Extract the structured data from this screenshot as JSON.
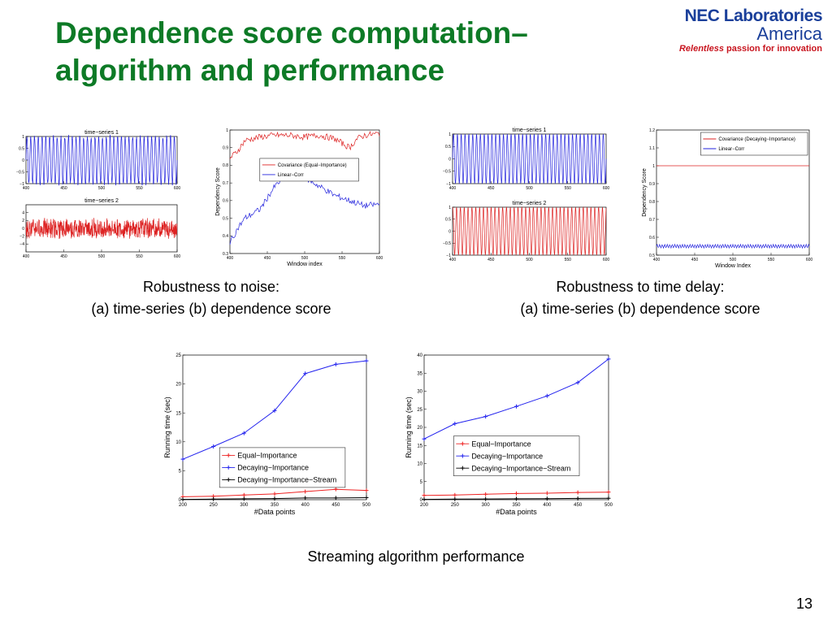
{
  "slide": {
    "title_line1": "Dependence score computation–",
    "title_line2": "algorithm and performance",
    "page_number": "13"
  },
  "logo": {
    "line1": "NEC Laboratories",
    "line2": "America",
    "tagline_italic": "Relentless",
    "tagline_rest": " passion for innovation",
    "brand_color": "#1a3f9a",
    "accent_color": "#c8141e"
  },
  "captions": {
    "noise_line1": "Robustness to noise:",
    "noise_line2": "(a) time-series  (b) dependence score",
    "delay_line1": "Robustness to time delay:",
    "delay_line2": "(a) time-series  (b) dependence score",
    "streaming": "Streaming algorithm performance"
  },
  "chart_data": [
    {
      "id": "noise_ts1",
      "type": "line",
      "title": "time−series 1",
      "xlim": [
        400,
        600
      ],
      "ylim": [
        -1,
        1
      ],
      "xticks": [
        "400",
        "450",
        "500",
        "550",
        "600"
      ],
      "yticks": [
        "1",
        "0.5",
        "0",
        "−0.5",
        "−1"
      ],
      "series": [
        {
          "color": "#2222dd",
          "values": {
            "kind": "sine",
            "cycles": 40,
            "amplitude": 1,
            "noise": 0.08
          }
        }
      ]
    },
    {
      "id": "noise_ts2",
      "type": "line",
      "title": "time−series 2",
      "xlim": [
        400,
        600
      ],
      "ylim": [
        -6,
        6
      ],
      "xticks": [
        "400",
        "450",
        "500",
        "550",
        "600"
      ],
      "yticks": [
        "4",
        "2",
        "0",
        "−2",
        "−4"
      ],
      "series": [
        {
          "color": "#dd2222",
          "values": {
            "kind": "noise",
            "amplitude": 2.2
          }
        }
      ]
    },
    {
      "id": "noise_score",
      "type": "line",
      "title": "",
      "xlabel": "Window index",
      "ylabel": "Dependency Score",
      "xlim": [
        400,
        600
      ],
      "ylim": [
        0.3,
        1.0
      ],
      "xticks": [
        "400",
        "450",
        "500",
        "550",
        "600"
      ],
      "yticks": [
        "1",
        "0.9",
        "0.8",
        "0.7",
        "0.6",
        "0.5",
        "0.4",
        "0.3"
      ],
      "legend": "upper-center",
      "series": [
        {
          "name": "Covariance (Equal−Importance)",
          "color": "#dd2222",
          "x": [
            400,
            410,
            420,
            440,
            460,
            480,
            500,
            520,
            540,
            560,
            570,
            580,
            600
          ],
          "y": [
            0.84,
            0.88,
            0.94,
            0.96,
            0.97,
            0.97,
            0.96,
            0.97,
            0.95,
            0.9,
            0.95,
            0.97,
            0.98
          ]
        },
        {
          "name": "Linear−Corr",
          "color": "#2222dd",
          "x": [
            400,
            410,
            420,
            440,
            460,
            470,
            480,
            500,
            520,
            540,
            560,
            580,
            600
          ],
          "y": [
            0.36,
            0.44,
            0.5,
            0.55,
            0.68,
            0.72,
            0.74,
            0.73,
            0.68,
            0.63,
            0.6,
            0.57,
            0.58
          ]
        }
      ]
    },
    {
      "id": "delay_ts1",
      "type": "line",
      "title": "time−series 1",
      "xlim": [
        400,
        600
      ],
      "ylim": [
        -1,
        1
      ],
      "xticks": [
        "400",
        "450",
        "500",
        "550",
        "600"
      ],
      "yticks": [
        "1",
        "0.5",
        "0",
        "−0.5",
        "−1"
      ],
      "series": [
        {
          "color": "#2222dd",
          "values": {
            "kind": "sine",
            "cycles": 40,
            "amplitude": 1,
            "noise": 0
          }
        }
      ]
    },
    {
      "id": "delay_ts2",
      "type": "line",
      "title": "time−series 2",
      "xlim": [
        400,
        600
      ],
      "ylim": [
        -1,
        1
      ],
      "xticks": [
        "400",
        "450",
        "500",
        "550",
        "600"
      ],
      "yticks": [
        "1",
        "0.5",
        "0",
        "−0.5",
        "−1"
      ],
      "series": [
        {
          "color": "#dd2222",
          "values": {
            "kind": "sine",
            "cycles": 40,
            "amplitude": 1,
            "noise": 0,
            "phase": 1.3
          }
        }
      ]
    },
    {
      "id": "delay_score",
      "type": "line",
      "title": "",
      "xlabel": "Window Index",
      "ylabel": "Dependency Score",
      "xlim": [
        400,
        600
      ],
      "ylim": [
        0.5,
        1.2
      ],
      "xticks": [
        "400",
        "450",
        "500",
        "550",
        "600"
      ],
      "yticks": [
        "1.2",
        "1.1",
        "1",
        "0.9",
        "0.8",
        "0.7",
        "0.6",
        "0.5"
      ],
      "legend": "top-right",
      "series": [
        {
          "name": "Covariance (Decaying−Importance)",
          "color": "#dd2222",
          "x": [
            400,
            600
          ],
          "y": [
            1.0,
            1.0
          ]
        },
        {
          "name": "Linear−Corr",
          "color": "#2222dd",
          "x": [
            400,
            600
          ],
          "y": [
            0.55,
            0.55
          ],
          "ripple": 0.01
        }
      ]
    },
    {
      "id": "perf_left",
      "type": "line",
      "title": "",
      "xlabel": "#Data points",
      "ylabel": "Running time (sec)",
      "xlim": [
        200,
        500
      ],
      "ylim": [
        0,
        25
      ],
      "xticks": [
        "200",
        "250",
        "300",
        "350",
        "400",
        "450",
        "500"
      ],
      "yticks": [
        "0",
        "5",
        "10",
        "15",
        "20",
        "25"
      ],
      "legend": "lower-right",
      "categories": [
        200,
        250,
        300,
        350,
        400,
        450,
        500
      ],
      "series": [
        {
          "name": "Equal−Importance",
          "color": "#ee2222",
          "marker": "+",
          "values": [
            0.5,
            0.6,
            0.8,
            1.0,
            1.4,
            1.8,
            1.6
          ]
        },
        {
          "name": "Decaying−Importance",
          "color": "#2222ee",
          "marker": "+",
          "values": [
            7.0,
            9.2,
            11.5,
            15.4,
            21.8,
            23.4,
            24.0
          ]
        },
        {
          "name": "Decaying−Importance−Stream",
          "color": "#000000",
          "marker": "+",
          "values": [
            0.05,
            0.1,
            0.15,
            0.2,
            0.3,
            0.3,
            0.35
          ]
        }
      ]
    },
    {
      "id": "perf_right",
      "type": "line",
      "title": "",
      "xlabel": "#Data points",
      "ylabel": "Running time (sec)",
      "xlim": [
        200,
        500
      ],
      "ylim": [
        0,
        40
      ],
      "xticks": [
        "200",
        "250",
        "300",
        "350",
        "400",
        "450",
        "500"
      ],
      "yticks": [
        "0",
        "5",
        "10",
        "15",
        "20",
        "25",
        "30",
        "35",
        "40"
      ],
      "legend": "center-right",
      "categories": [
        200,
        250,
        300,
        350,
        400,
        450,
        500
      ],
      "series": [
        {
          "name": "Equal−Importance",
          "color": "#ee2222",
          "marker": "+",
          "values": [
            1.2,
            1.3,
            1.5,
            1.7,
            1.8,
            2.0,
            2.1
          ]
        },
        {
          "name": "Decaying−Importance",
          "color": "#2222ee",
          "marker": "+",
          "values": [
            16.8,
            21.0,
            23.0,
            25.8,
            28.7,
            32.4,
            38.9
          ]
        },
        {
          "name": "Decaying−Importance−Stream",
          "color": "#000000",
          "marker": "+",
          "values": [
            0.1,
            0.15,
            0.2,
            0.25,
            0.3,
            0.35,
            0.4
          ]
        }
      ]
    }
  ]
}
